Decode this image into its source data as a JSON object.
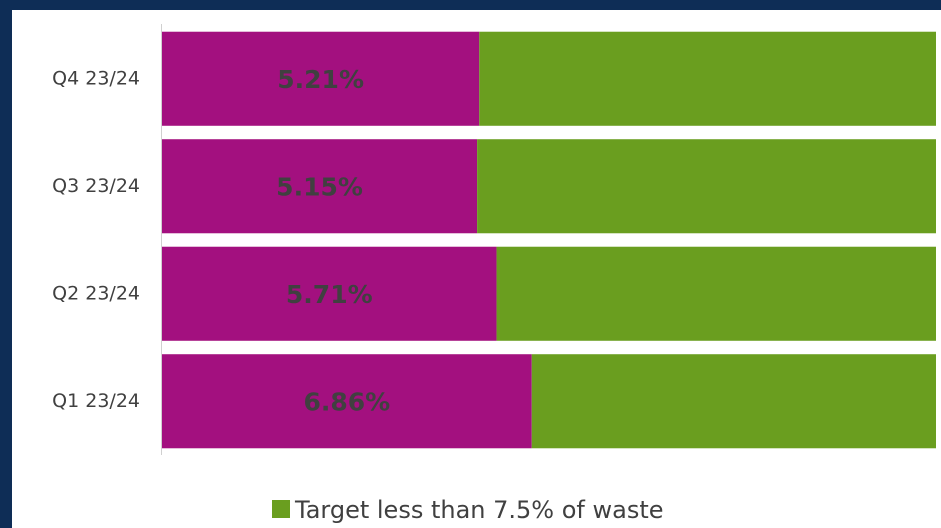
{
  "chart_data": {
    "type": "bar",
    "orientation": "horizontal",
    "stacked": "percent",
    "categories": [
      "Q4 23/24",
      "Q3 23/24",
      "Q2 23/24",
      "Q1 23/24"
    ],
    "series": [
      {
        "color": "#a3107f",
        "values": [
          5.21,
          5.15,
          5.71,
          6.86
        ],
        "value_labels": [
          "5.21%",
          "5.15%",
          "5.71%",
          "6.86%"
        ]
      },
      {
        "name": "Target less than 7.5% of waste",
        "color": "#6a9e1f",
        "values": [
          7.5,
          7.5,
          7.5,
          7.5
        ]
      }
    ],
    "legend": "bottom"
  }
}
